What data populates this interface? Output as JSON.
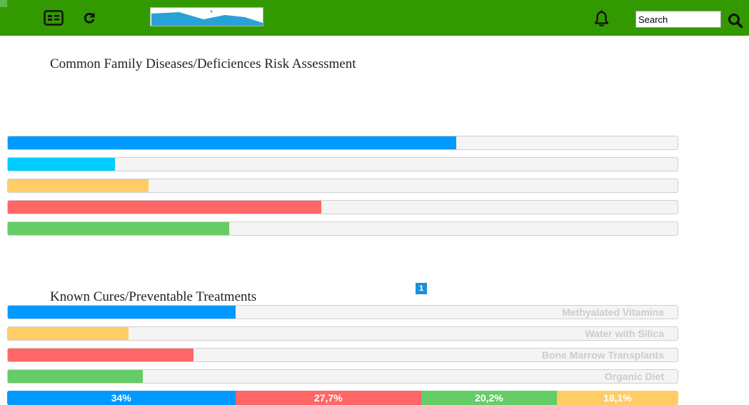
{
  "search": {
    "value": "Search",
    "icon": "search-icon"
  },
  "header": {
    "icons": [
      "id-card-icon",
      "refresh-icon",
      "bell-icon"
    ]
  },
  "risk": {
    "title": "Common Family Diseases/Deficiences Risk Assessment",
    "bars": [
      {
        "percent": 67,
        "color": "#0099ff"
      },
      {
        "percent": 16,
        "color": "#00ccff"
      },
      {
        "percent": 21,
        "color": "#ffcc66"
      },
      {
        "percent": 46.8,
        "color": "#ff6666"
      },
      {
        "percent": 33,
        "color": "#66cc66"
      }
    ]
  },
  "pagination": {
    "current": "1"
  },
  "treatments": {
    "title": "Known Cures/Preventable Treatments",
    "bars": [
      {
        "label": "Methyalated Vitamins",
        "percent": 34,
        "color": "#0099ff"
      },
      {
        "label": "Water with Silica",
        "percent": 18,
        "color": "#ffcc66"
      },
      {
        "label": "Bone Marrow Transplants",
        "percent": 27.7,
        "color": "#ff6666"
      },
      {
        "label": "Organic Diet",
        "percent": 20.2,
        "color": "#66cc66"
      }
    ],
    "stacked": [
      {
        "label": "34%",
        "percent": 34,
        "color": "#0099ff"
      },
      {
        "label": "27,7%",
        "percent": 27.7,
        "color": "#ff6666"
      },
      {
        "label": "20,2%",
        "percent": 20.2,
        "color": "#66cc66"
      },
      {
        "label": "18,1%",
        "percent": 18.1,
        "color": "#ffcc66"
      }
    ]
  }
}
